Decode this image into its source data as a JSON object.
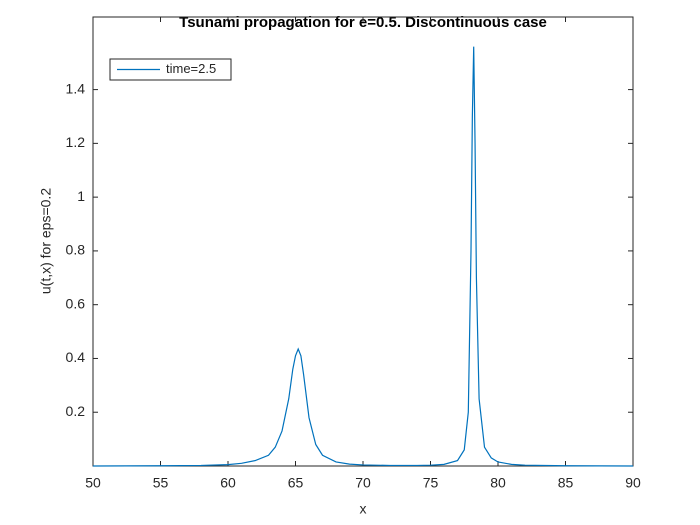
{
  "chart_data": {
    "type": "line",
    "title": "Tsunami propagation for e=0.5. Discontinuous case",
    "x_label": "x",
    "y_label": "u(t,x) for eps=0.2",
    "x": [
      50,
      55,
      58,
      60,
      61,
      62,
      63,
      63.5,
      64,
      64.5,
      64.8,
      65,
      65.2,
      65.4,
      65.6,
      66,
      66.5,
      67,
      68,
      69,
      70,
      72,
      74,
      75,
      76,
      77,
      77.5,
      77.8,
      78,
      78.1,
      78.2,
      78.3,
      78.4,
      78.6,
      79,
      79.5,
      80,
      81,
      82,
      85,
      90
    ],
    "series": [
      {
        "name": "time=2.5",
        "color": "#0072bd",
        "values": [
          0,
          0.001,
          0.002,
          0.005,
          0.01,
          0.02,
          0.04,
          0.07,
          0.13,
          0.25,
          0.36,
          0.41,
          0.435,
          0.41,
          0.34,
          0.18,
          0.08,
          0.04,
          0.015,
          0.007,
          0.004,
          0.002,
          0.002,
          0.003,
          0.006,
          0.02,
          0.06,
          0.2,
          0.8,
          1.3,
          1.56,
          1.2,
          0.7,
          0.25,
          0.07,
          0.03,
          0.015,
          0.006,
          0.003,
          0.001,
          0
        ]
      }
    ],
    "xlim": [
      50,
      90
    ],
    "ylim": [
      0,
      1.67
    ],
    "xticks": [
      50,
      55,
      60,
      65,
      70,
      75,
      80,
      85,
      90
    ],
    "yticks": [
      0.2,
      0.4,
      0.6,
      0.8,
      1,
      1.2,
      1.4
    ],
    "legend": "northwest",
    "grid": false
  }
}
